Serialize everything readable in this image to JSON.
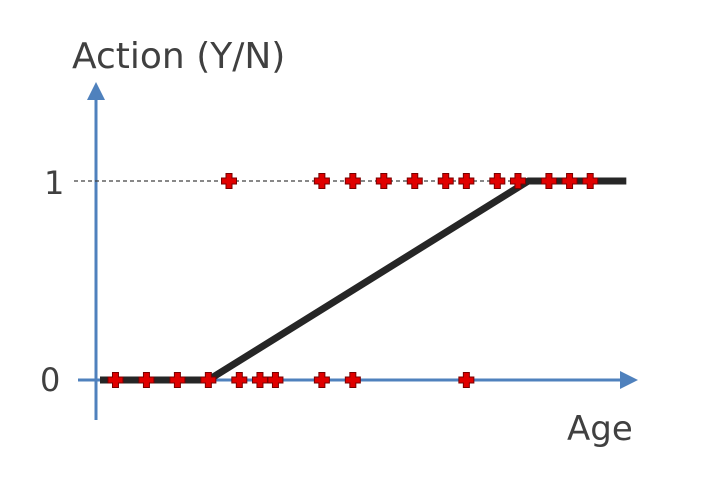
{
  "chart_data": {
    "type": "scatter",
    "ylabel": "Action (Y/N)",
    "xlabel": "Age",
    "y_ticks": [
      "0",
      "1"
    ],
    "ylim": [
      0,
      1
    ],
    "xlim": [
      0,
      100
    ],
    "grid": false,
    "legend": "none",
    "colors": {
      "axes": "#4f81bd",
      "points": "#e00000",
      "point_outline": "#7a0000",
      "fit_line": "#262626",
      "reference_line": "#404040",
      "text": "#404040"
    },
    "series": [
      {
        "marker": "cross",
        "points": [
          {
            "x": 3,
            "y": 0
          },
          {
            "x": 9,
            "y": 0
          },
          {
            "x": 15,
            "y": 0
          },
          {
            "x": 21,
            "y": 0
          },
          {
            "x": 27,
            "y": 0
          },
          {
            "x": 31,
            "y": 0
          },
          {
            "x": 34,
            "y": 0
          },
          {
            "x": 43,
            "y": 0
          },
          {
            "x": 49,
            "y": 0
          },
          {
            "x": 71,
            "y": 0
          },
          {
            "x": 25,
            "y": 1
          },
          {
            "x": 43,
            "y": 1
          },
          {
            "x": 49,
            "y": 1
          },
          {
            "x": 55,
            "y": 1
          },
          {
            "x": 61,
            "y": 1
          },
          {
            "x": 67,
            "y": 1
          },
          {
            "x": 71,
            "y": 1
          },
          {
            "x": 77,
            "y": 1
          },
          {
            "x": 81,
            "y": 1
          },
          {
            "x": 87,
            "y": 1
          },
          {
            "x": 91,
            "y": 1
          },
          {
            "x": 95,
            "y": 1
          }
        ]
      },
      {
        "type": "line",
        "points": [
          {
            "x": 0,
            "y": 0
          },
          {
            "x": 21,
            "y": 0
          },
          {
            "x": 83,
            "y": 1
          },
          {
            "x": 102,
            "y": 1
          }
        ]
      }
    ]
  }
}
